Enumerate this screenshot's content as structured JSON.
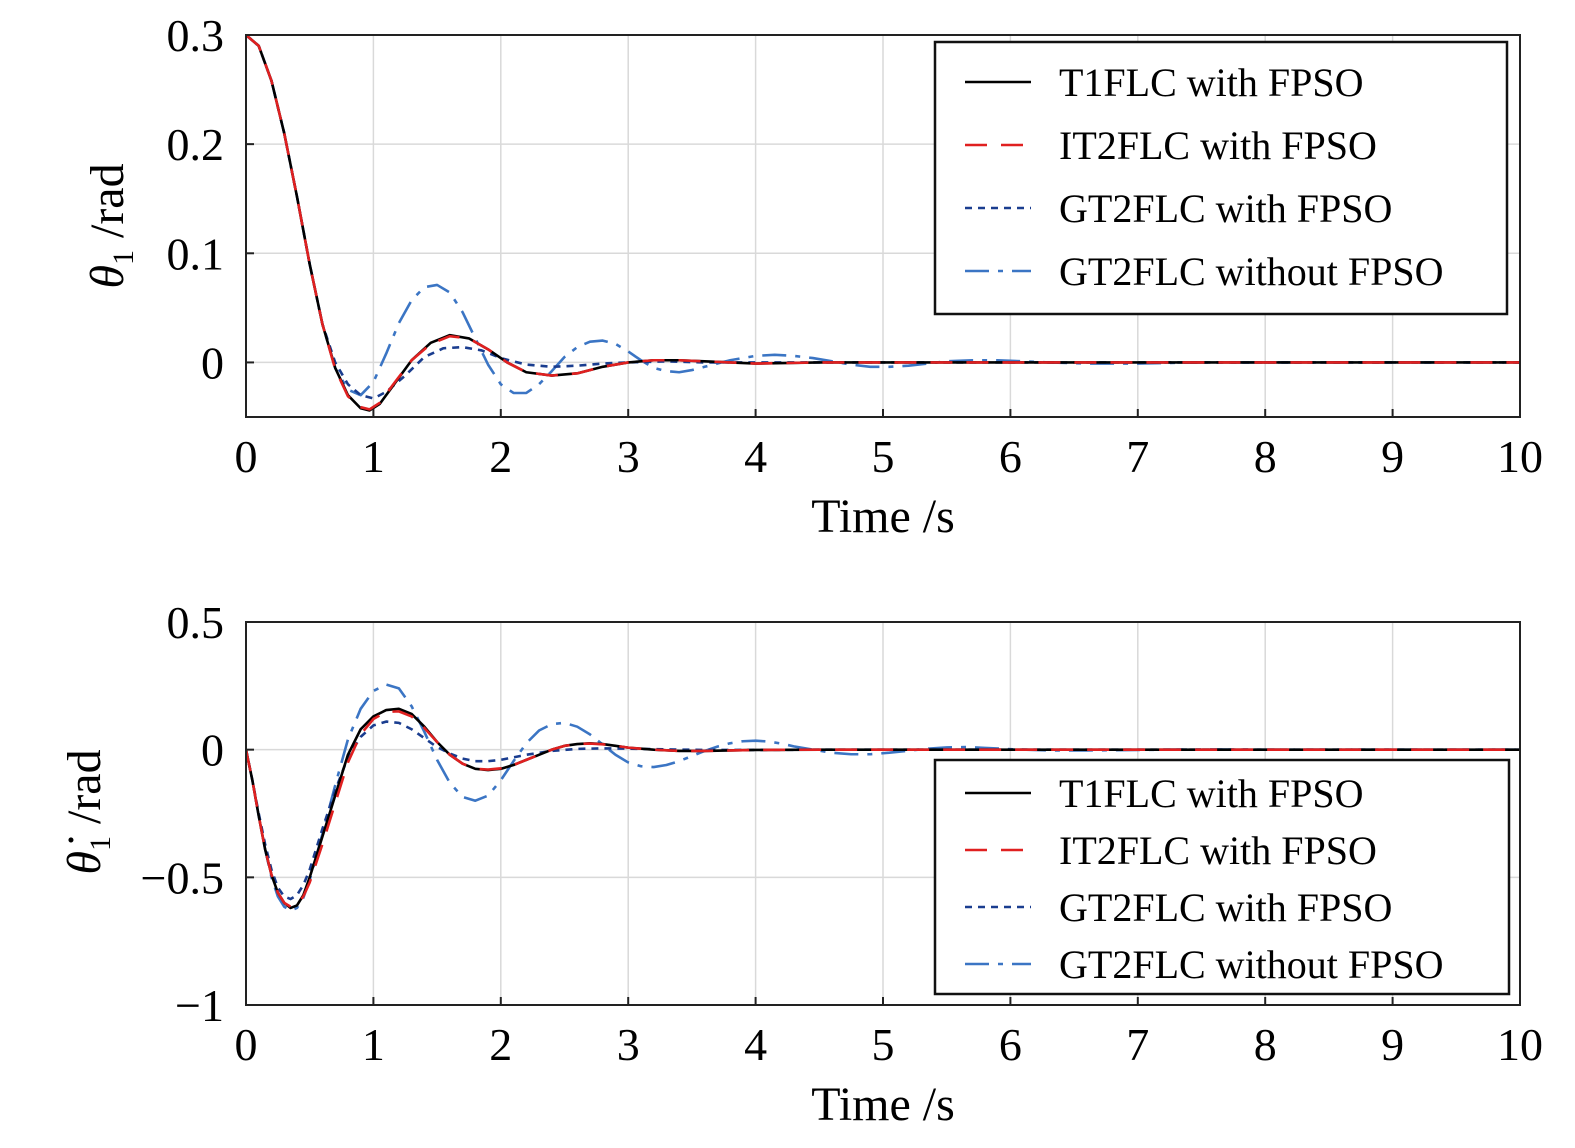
{
  "colors": {
    "t1flc": "#000000",
    "it2flc": "#e02020",
    "gt2flc": "#1a3d8f",
    "gt2flc_nofpso": "#3b75c4",
    "grid": "#d9d9d9"
  },
  "chart_data": [
    {
      "type": "line",
      "xlabel": "Time /s",
      "ylabel_symbol": "θ",
      "ylabel_subscript": "1",
      "ylabel_unit": " /rad",
      "xlim": [
        0,
        10
      ],
      "ylim": [
        -0.05,
        0.3
      ],
      "xticks": [
        0,
        1,
        2,
        3,
        4,
        5,
        6,
        7,
        8,
        9,
        10
      ],
      "xtick_labels": [
        "0",
        "1",
        "2",
        "3",
        "4",
        "5",
        "6",
        "7",
        "8",
        "9",
        "10"
      ],
      "yticks": [
        0,
        0.1,
        0.2,
        0.3
      ],
      "ytick_labels": [
        "0",
        "0.1",
        "0.2",
        "0.3"
      ],
      "grid": true,
      "legend_position": "top-right",
      "series": [
        {
          "name": "T1FLC with FPSO",
          "style": "solid",
          "x": [
            0,
            0.1,
            0.2,
            0.3,
            0.4,
            0.5,
            0.6,
            0.7,
            0.8,
            0.9,
            0.97,
            1.05,
            1.15,
            1.3,
            1.45,
            1.6,
            1.75,
            1.9,
            2.05,
            2.2,
            2.4,
            2.6,
            2.8,
            3.0,
            3.2,
            3.4,
            3.6,
            3.8,
            4.0,
            4.5,
            5,
            6,
            7,
            8,
            9,
            10
          ],
          "y": [
            0.3,
            0.29,
            0.258,
            0.21,
            0.152,
            0.09,
            0.035,
            -0.005,
            -0.03,
            -0.042,
            -0.044,
            -0.038,
            -0.022,
            0.002,
            0.018,
            0.025,
            0.022,
            0.012,
            0.0,
            -0.009,
            -0.012,
            -0.01,
            -0.004,
            0.0,
            0.002,
            0.002,
            0.001,
            0.0,
            -0.001,
            0.0,
            0.0,
            0.0,
            0.0,
            0.0,
            0.0,
            0.0
          ]
        },
        {
          "name": "IT2FLC with FPSO",
          "style": "dashed",
          "x": [
            0,
            0.1,
            0.2,
            0.3,
            0.4,
            0.5,
            0.6,
            0.7,
            0.8,
            0.9,
            0.97,
            1.05,
            1.15,
            1.3,
            1.45,
            1.6,
            1.75,
            1.9,
            2.05,
            2.2,
            2.4,
            2.6,
            2.8,
            3.0,
            3.2,
            3.4,
            3.6,
            3.8,
            4.0,
            4.5,
            5,
            6,
            7,
            8,
            9,
            10
          ],
          "y": [
            0.3,
            0.29,
            0.258,
            0.21,
            0.152,
            0.09,
            0.035,
            -0.006,
            -0.031,
            -0.041,
            -0.043,
            -0.037,
            -0.021,
            0.002,
            0.017,
            0.024,
            0.022,
            0.012,
            0.0,
            -0.009,
            -0.012,
            -0.01,
            -0.004,
            0.0,
            0.002,
            0.002,
            0.001,
            0.0,
            -0.001,
            0.0,
            0.0,
            0.0,
            0.0,
            0.0,
            0.0,
            0.0
          ]
        },
        {
          "name": "GT2FLC with FPSO",
          "style": "dotted",
          "x": [
            0,
            0.1,
            0.2,
            0.3,
            0.4,
            0.5,
            0.6,
            0.7,
            0.8,
            0.9,
            1.0,
            1.1,
            1.25,
            1.4,
            1.55,
            1.7,
            1.85,
            2.0,
            2.2,
            2.4,
            2.6,
            2.8,
            3.0,
            3.3,
            3.6,
            4.0,
            4.5,
            5,
            6,
            7,
            8,
            9,
            10
          ],
          "y": [
            0.3,
            0.29,
            0.258,
            0.21,
            0.152,
            0.09,
            0.035,
            0.0,
            -0.02,
            -0.03,
            -0.033,
            -0.027,
            -0.012,
            0.005,
            0.013,
            0.014,
            0.011,
            0.004,
            -0.002,
            -0.004,
            -0.003,
            -0.001,
            0.0,
            0.001,
            0.0,
            0.0,
            0.0,
            0.0,
            0.0,
            0.0,
            0.0,
            0.0,
            0.0
          ]
        },
        {
          "name": "GT2FLC without FPSO",
          "style": "dashdot",
          "x": [
            0,
            0.1,
            0.2,
            0.3,
            0.4,
            0.5,
            0.6,
            0.7,
            0.8,
            0.9,
            1.0,
            1.1,
            1.2,
            1.3,
            1.4,
            1.5,
            1.6,
            1.7,
            1.8,
            1.9,
            2.0,
            2.1,
            2.2,
            2.3,
            2.4,
            2.5,
            2.6,
            2.7,
            2.8,
            2.9,
            3.0,
            3.1,
            3.2,
            3.3,
            3.4,
            3.5,
            3.6,
            3.7,
            3.8,
            3.9,
            4.0,
            4.15,
            4.3,
            4.45,
            4.6,
            4.75,
            4.9,
            5.05,
            5.2,
            5.35,
            5.5,
            5.7,
            5.9,
            6.1,
            6.3,
            6.6,
            7.0,
            7.5,
            8.0,
            9.0,
            10.0
          ],
          "y": [
            0.3,
            0.29,
            0.258,
            0.21,
            0.152,
            0.09,
            0.035,
            -0.005,
            -0.025,
            -0.03,
            -0.018,
            0.008,
            0.036,
            0.057,
            0.069,
            0.071,
            0.064,
            0.046,
            0.022,
            -0.002,
            -0.02,
            -0.028,
            -0.028,
            -0.02,
            -0.008,
            0.005,
            0.014,
            0.019,
            0.02,
            0.017,
            0.01,
            0.002,
            -0.005,
            -0.008,
            -0.009,
            -0.007,
            -0.004,
            -0.001,
            0.002,
            0.004,
            0.006,
            0.007,
            0.006,
            0.004,
            0.001,
            -0.002,
            -0.004,
            -0.004,
            -0.003,
            -0.001,
            0.001,
            0.002,
            0.002,
            0.001,
            0.0,
            -0.001,
            -0.001,
            0.0,
            0.0,
            0.0,
            0.0
          ]
        }
      ]
    },
    {
      "type": "line",
      "xlabel": "Time /s",
      "ylabel_symbol": "θ̇",
      "ylabel_subscript": "1",
      "ylabel_unit": " /rad",
      "xlim": [
        0,
        10
      ],
      "ylim": [
        -1,
        0.5
      ],
      "xticks": [
        0,
        1,
        2,
        3,
        4,
        5,
        6,
        7,
        8,
        9,
        10
      ],
      "xtick_labels": [
        "0",
        "1",
        "2",
        "3",
        "4",
        "5",
        "6",
        "7",
        "8",
        "9",
        "10"
      ],
      "yticks": [
        -1,
        -0.5,
        0,
        0.5
      ],
      "ytick_labels": [
        "−1",
        "−0.5",
        "0",
        "0.5"
      ],
      "grid": true,
      "legend_position": "bottom-right",
      "series": [
        {
          "name": "T1FLC with FPSO",
          "style": "solid",
          "x": [
            0,
            0.05,
            0.1,
            0.15,
            0.2,
            0.25,
            0.3,
            0.35,
            0.4,
            0.45,
            0.5,
            0.6,
            0.7,
            0.8,
            0.9,
            1.0,
            1.1,
            1.2,
            1.3,
            1.4,
            1.5,
            1.6,
            1.7,
            1.8,
            1.9,
            2.0,
            2.1,
            2.2,
            2.3,
            2.4,
            2.5,
            2.6,
            2.7,
            2.8,
            2.9,
            3.0,
            3.2,
            3.4,
            3.6,
            3.8,
            4.0,
            4.5,
            5,
            6,
            7,
            8,
            9,
            10
          ],
          "y": [
            0,
            -0.12,
            -0.26,
            -0.39,
            -0.49,
            -0.56,
            -0.6,
            -0.62,
            -0.61,
            -0.57,
            -0.5,
            -0.34,
            -0.18,
            -0.02,
            0.08,
            0.13,
            0.155,
            0.16,
            0.14,
            0.09,
            0.03,
            -0.02,
            -0.055,
            -0.075,
            -0.08,
            -0.075,
            -0.06,
            -0.04,
            -0.02,
            0.0,
            0.015,
            0.022,
            0.025,
            0.022,
            0.015,
            0.008,
            0.0,
            -0.005,
            -0.005,
            -0.003,
            -0.001,
            0.0,
            0.0,
            0.0,
            0.0,
            0.0,
            0.0,
            0.0
          ]
        },
        {
          "name": "IT2FLC with FPSO",
          "style": "dashed",
          "x": [
            0,
            0.05,
            0.1,
            0.15,
            0.2,
            0.25,
            0.3,
            0.35,
            0.4,
            0.45,
            0.5,
            0.6,
            0.7,
            0.8,
            0.9,
            1.0,
            1.1,
            1.2,
            1.3,
            1.4,
            1.5,
            1.6,
            1.7,
            1.8,
            1.9,
            2.0,
            2.1,
            2.2,
            2.3,
            2.4,
            2.5,
            2.6,
            2.7,
            2.8,
            2.9,
            3.0,
            3.2,
            3.4,
            3.6,
            3.8,
            4.0,
            4.5,
            5,
            6,
            7,
            8,
            9,
            10
          ],
          "y": [
            0,
            -0.12,
            -0.26,
            -0.39,
            -0.49,
            -0.56,
            -0.6,
            -0.615,
            -0.605,
            -0.575,
            -0.52,
            -0.37,
            -0.21,
            -0.05,
            0.06,
            0.12,
            0.148,
            0.15,
            0.13,
            0.085,
            0.03,
            -0.02,
            -0.055,
            -0.075,
            -0.078,
            -0.073,
            -0.06,
            -0.04,
            -0.02,
            0.0,
            0.015,
            0.022,
            0.024,
            0.021,
            0.015,
            0.008,
            0.0,
            -0.005,
            -0.005,
            -0.003,
            -0.001,
            0.0,
            0.0,
            0.0,
            0.0,
            0.0,
            0.0,
            0.0
          ]
        },
        {
          "name": "GT2FLC with FPSO",
          "style": "dotted",
          "x": [
            0,
            0.05,
            0.1,
            0.15,
            0.2,
            0.25,
            0.3,
            0.35,
            0.4,
            0.45,
            0.5,
            0.6,
            0.7,
            0.8,
            0.9,
            1.0,
            1.1,
            1.2,
            1.3,
            1.4,
            1.5,
            1.6,
            1.7,
            1.8,
            1.9,
            2.0,
            2.1,
            2.2,
            2.4,
            2.6,
            2.8,
            3.0,
            3.3,
            3.6,
            4.0,
            4.5,
            5,
            6,
            7,
            8,
            9,
            10
          ],
          "y": [
            0,
            -0.12,
            -0.25,
            -0.37,
            -0.47,
            -0.54,
            -0.575,
            -0.585,
            -0.57,
            -0.53,
            -0.47,
            -0.31,
            -0.16,
            -0.03,
            0.05,
            0.095,
            0.11,
            0.105,
            0.08,
            0.045,
            0.01,
            -0.015,
            -0.035,
            -0.045,
            -0.045,
            -0.04,
            -0.03,
            -0.02,
            -0.005,
            0.003,
            0.005,
            0.004,
            0.001,
            -0.001,
            -0.001,
            0.0,
            0.0,
            0.0,
            0.0,
            0.0,
            0.0,
            0.0
          ]
        },
        {
          "name": "GT2FLC without FPSO",
          "style": "dashdot",
          "x": [
            0,
            0.05,
            0.1,
            0.15,
            0.2,
            0.25,
            0.3,
            0.35,
            0.4,
            0.45,
            0.5,
            0.6,
            0.7,
            0.8,
            0.9,
            1.0,
            1.1,
            1.2,
            1.3,
            1.4,
            1.5,
            1.6,
            1.7,
            1.8,
            1.9,
            2.0,
            2.1,
            2.2,
            2.3,
            2.4,
            2.5,
            2.6,
            2.7,
            2.8,
            2.9,
            3.0,
            3.1,
            3.2,
            3.3,
            3.4,
            3.5,
            3.6,
            3.7,
            3.8,
            3.9,
            4.0,
            4.1,
            4.2,
            4.3,
            4.45,
            4.6,
            4.75,
            4.9,
            5.05,
            5.2,
            5.35,
            5.5,
            5.65,
            5.8,
            6.0,
            6.3,
            6.6,
            7.0,
            7.5,
            8.0,
            9.0,
            10.0
          ],
          "y": [
            0,
            -0.12,
            -0.26,
            -0.39,
            -0.5,
            -0.575,
            -0.615,
            -0.63,
            -0.62,
            -0.58,
            -0.51,
            -0.33,
            -0.14,
            0.04,
            0.16,
            0.23,
            0.255,
            0.24,
            0.17,
            0.07,
            -0.04,
            -0.13,
            -0.185,
            -0.2,
            -0.18,
            -0.12,
            -0.045,
            0.025,
            0.075,
            0.1,
            0.105,
            0.09,
            0.06,
            0.02,
            -0.02,
            -0.05,
            -0.065,
            -0.068,
            -0.06,
            -0.045,
            -0.025,
            -0.005,
            0.012,
            0.025,
            0.033,
            0.035,
            0.032,
            0.024,
            0.013,
            0.0,
            -0.012,
            -0.018,
            -0.018,
            -0.012,
            -0.004,
            0.004,
            0.009,
            0.01,
            0.007,
            0.002,
            -0.003,
            -0.003,
            -0.001,
            0.001,
            0.0,
            0.0,
            0.0
          ]
        }
      ]
    }
  ]
}
